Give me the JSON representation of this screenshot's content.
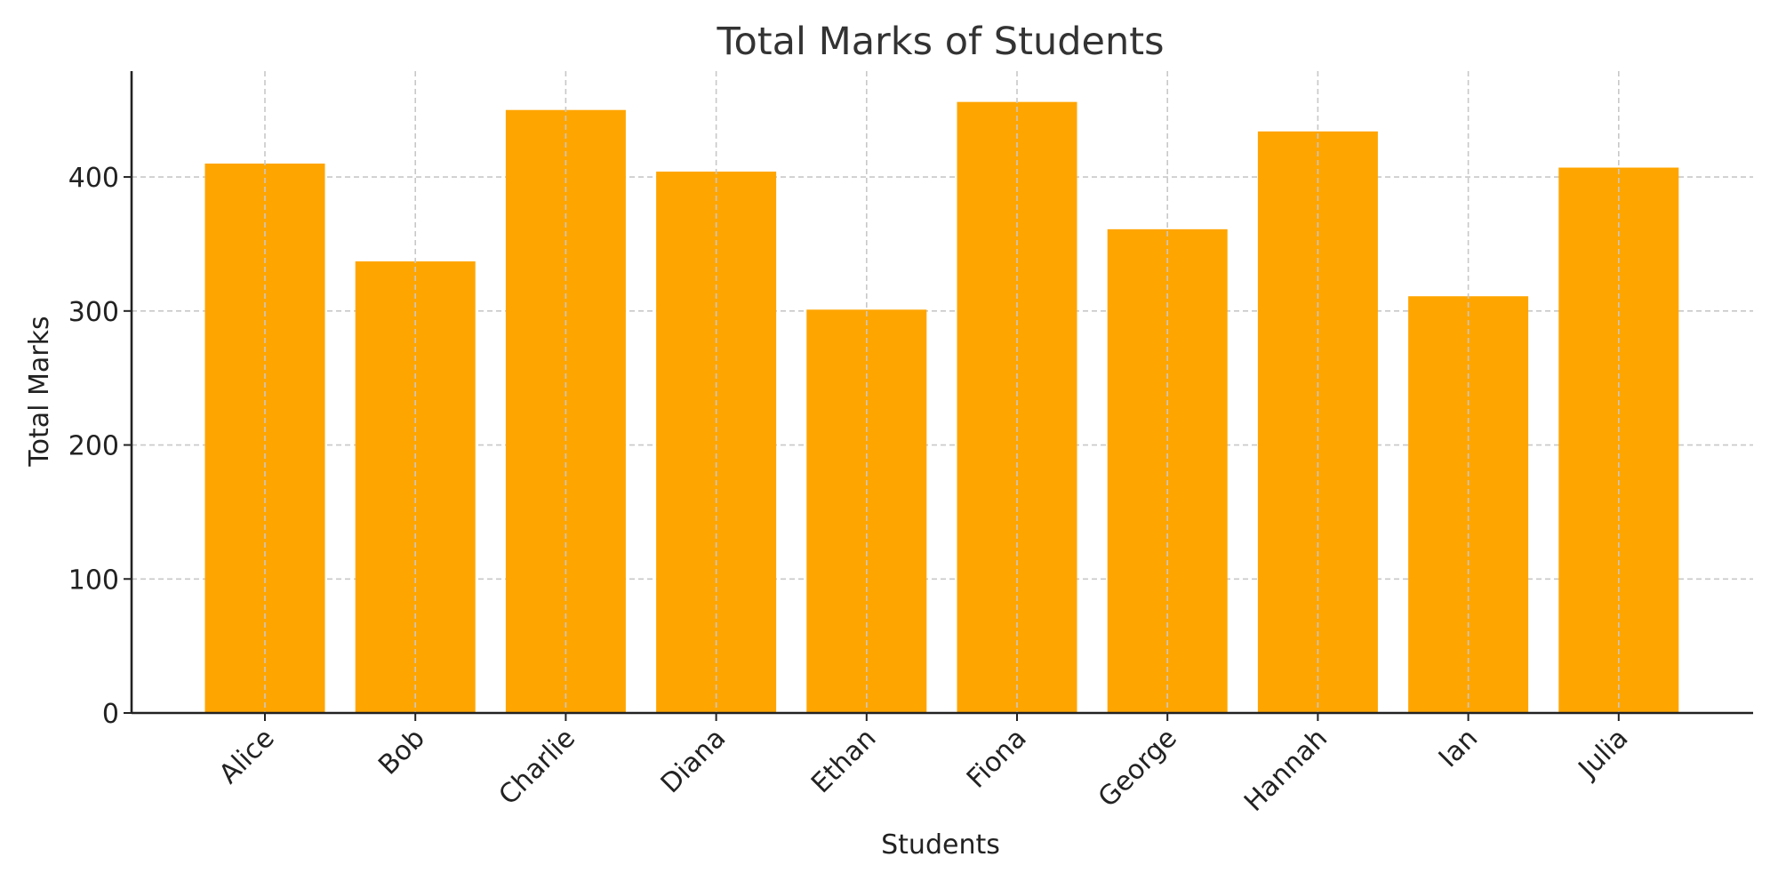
{
  "chart_data": {
    "type": "bar",
    "title": "Total Marks of Students",
    "xlabel": "Students",
    "ylabel": "Total Marks",
    "categories": [
      "Alice",
      "Bob",
      "Charlie",
      "Diana",
      "Ethan",
      "Fiona",
      "George",
      "Hannah",
      "Ian",
      "Julia"
    ],
    "values": [
      410,
      337,
      450,
      404,
      301,
      456,
      361,
      434,
      311,
      407
    ],
    "ylim": [
      0,
      479
    ],
    "yticks": [
      0,
      100,
      200,
      300,
      400
    ],
    "grid": true,
    "bar_color": "#FFA500",
    "legend": "none"
  }
}
